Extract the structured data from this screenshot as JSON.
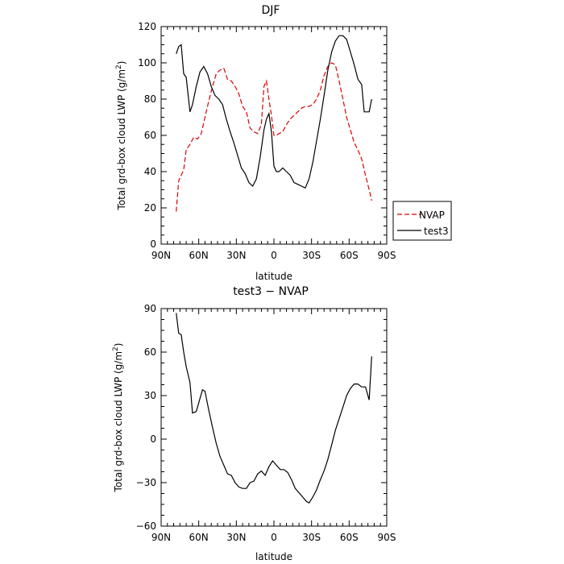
{
  "chart_data": [
    {
      "type": "line",
      "title": "DJF",
      "xlabel": "latitude",
      "ylabel_main": "Total grd-box cloud LWP (g/m",
      "ylabel_sup": "2",
      "ylabel_end": ")",
      "xlim": [
        90,
        -90
      ],
      "ylim": [
        0,
        120
      ],
      "xticks": [
        90,
        60,
        30,
        0,
        -30,
        -60,
        -90
      ],
      "xtick_labels": [
        "90N",
        "60N",
        "30N",
        "0",
        "30S",
        "60S",
        "90S"
      ],
      "yticks": [
        0,
        20,
        40,
        60,
        80,
        100,
        120
      ],
      "ytick_labels": [
        "0",
        "20",
        "40",
        "60",
        "80",
        "100",
        "120"
      ],
      "legend_position": "right",
      "series": [
        {
          "name": "NVAP",
          "color": "#dd0000",
          "dash": "dashed",
          "x": [
            78,
            76,
            72,
            70,
            67,
            64,
            61,
            58,
            55,
            52,
            49,
            46,
            43,
            40,
            37,
            34,
            31,
            28,
            25,
            22,
            19,
            16,
            13,
            10,
            8,
            6,
            4,
            2,
            0,
            -2,
            -4,
            -7,
            -10,
            -13,
            -16,
            -19,
            -22,
            -25,
            -28,
            -31,
            -34,
            -37,
            -40,
            -43,
            -46,
            -49,
            -52,
            -55,
            -58,
            -61,
            -64,
            -67,
            -70,
            -73,
            -76,
            -78
          ],
          "y": [
            18,
            35,
            41,
            52,
            55,
            59,
            58,
            61,
            70,
            79,
            87,
            94,
            96,
            97,
            91,
            90,
            87,
            83,
            76,
            73,
            64,
            62,
            61,
            66,
            87,
            90,
            80,
            71,
            60,
            60,
            61,
            62,
            66,
            69,
            71,
            73,
            75,
            76,
            76,
            77,
            80,
            85,
            93,
            98,
            100,
            99,
            90,
            80,
            70,
            63,
            56,
            52,
            47,
            38,
            30,
            24
          ]
        },
        {
          "name": "test3",
          "color": "#000000",
          "dash": "solid",
          "x": [
            78,
            76,
            74,
            72,
            70,
            67,
            65,
            62,
            59,
            56,
            53,
            50,
            47,
            44,
            41,
            38,
            35,
            32,
            29,
            26,
            23,
            20,
            17,
            14,
            11,
            8,
            6,
            4,
            2,
            0,
            -2,
            -4,
            -7,
            -10,
            -13,
            -16,
            -19,
            -22,
            -25,
            -28,
            -31,
            -34,
            -37,
            -40,
            -43,
            -46,
            -49,
            -52,
            -55,
            -58,
            -61,
            -64,
            -67,
            -70,
            -72,
            -74,
            -76,
            -78
          ],
          "y": [
            105,
            109,
            110,
            94,
            92,
            73,
            77,
            87,
            95,
            98,
            94,
            87,
            82,
            80,
            77,
            69,
            62,
            56,
            49,
            42,
            39,
            34,
            32,
            36,
            48,
            63,
            69,
            72,
            62,
            43,
            40,
            40,
            42,
            40,
            38,
            34,
            33,
            32,
            31,
            36,
            45,
            57,
            69,
            82,
            96,
            106,
            112,
            115,
            115,
            113,
            106,
            99,
            91,
            88,
            73,
            73,
            73,
            80
          ]
        }
      ]
    },
    {
      "type": "line",
      "title": "test3 − NVAP",
      "xlabel": "latitude",
      "ylabel_main": "Total grd-box cloud LWP (g/m",
      "ylabel_sup": "2",
      "ylabel_end": ")",
      "xlim": [
        90,
        -90
      ],
      "ylim": [
        -60,
        90
      ],
      "xticks": [
        90,
        60,
        30,
        0,
        -30,
        -60,
        -90
      ],
      "xtick_labels": [
        "90N",
        "60N",
        "30N",
        "0",
        "30S",
        "60S",
        "90S"
      ],
      "yticks": [
        -60,
        -30,
        0,
        30,
        60,
        90
      ],
      "ytick_labels": [
        "−60",
        "−30",
        "0",
        "30",
        "60",
        "90"
      ],
      "series": [
        {
          "color": "#000000",
          "dash": "solid",
          "x": [
            78,
            76,
            74,
            72,
            70,
            67,
            65,
            62,
            59,
            57,
            55,
            52,
            49,
            46,
            43,
            40,
            37,
            34,
            31,
            28,
            25,
            22,
            19,
            16,
            13,
            10,
            7,
            4,
            1,
            -2,
            -5,
            -8,
            -11,
            -14,
            -17,
            -20,
            -23,
            -26,
            -28,
            -31,
            -34,
            -37,
            -40,
            -43,
            -46,
            -49,
            -52,
            -55,
            -58,
            -61,
            -64,
            -67,
            -70,
            -73,
            -76,
            -78
          ],
          "y": [
            87,
            73,
            72,
            60,
            50,
            39,
            18,
            19,
            28,
            34,
            33,
            20,
            8,
            -3,
            -12,
            -18,
            -24,
            -25,
            -30,
            -33,
            -34,
            -34,
            -30,
            -29,
            -24,
            -22,
            -25,
            -19,
            -15,
            -18,
            -21,
            -21,
            -23,
            -28,
            -34,
            -37,
            -40,
            -43,
            -44,
            -40,
            -35,
            -28,
            -22,
            -14,
            -4,
            6,
            14,
            22,
            30,
            35,
            38,
            38,
            36,
            36,
            27,
            57
          ]
        }
      ]
    }
  ]
}
